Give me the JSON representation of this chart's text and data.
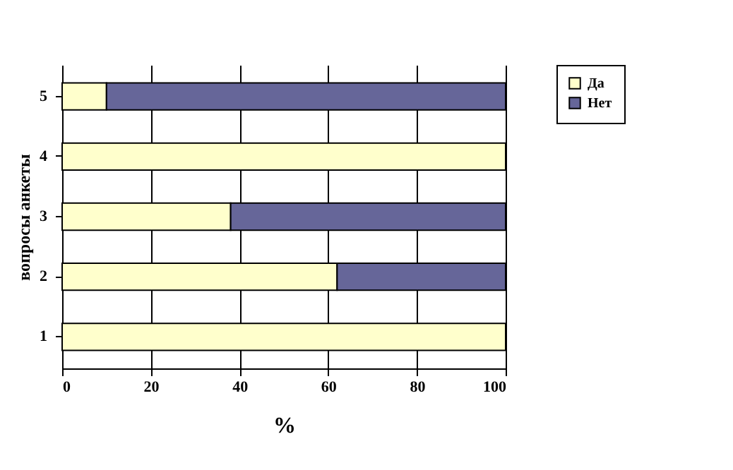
{
  "chart_data": {
    "type": "bar",
    "orientation": "horizontal",
    "stacked": true,
    "xlabel": "%",
    "ylabel": "вопросы анкеты",
    "categories": [
      "5",
      "4",
      "3",
      "2",
      "1"
    ],
    "series": [
      {
        "name": "Да",
        "color": "#ffffcc",
        "values": [
          10,
          100,
          38,
          62,
          100
        ]
      },
      {
        "name": "Нет",
        "color": "#666699",
        "values": [
          90,
          null,
          62,
          38,
          null
        ]
      }
    ],
    "xlim": [
      0,
      100
    ],
    "xticks": [
      0,
      20,
      40,
      60,
      80,
      100
    ],
    "grid": "x",
    "legend": "right"
  }
}
